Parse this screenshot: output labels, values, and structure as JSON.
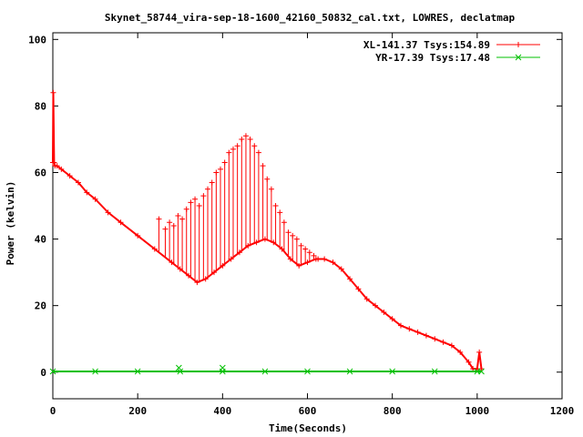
{
  "chart_data": {
    "type": "line",
    "title": "Skynet_58744_vira-sep-18-1600_42160_50832_cal.txt, LOWRES, declatmap",
    "xlabel": "Time(Seconds)",
    "ylabel": "Power (kelvin)",
    "xlim": [
      0,
      1200
    ],
    "ylim": [
      -8,
      102
    ],
    "xticks": [
      0,
      200,
      400,
      600,
      800,
      1000,
      1200
    ],
    "yticks": [
      0,
      20,
      40,
      60,
      80,
      100
    ],
    "legend_position": "top-right",
    "series": [
      {
        "name": "XL-141.37 Tsys:154.89",
        "color": "#ff0000",
        "marker": "plus",
        "x": [
          0,
          1,
          3,
          5,
          10,
          20,
          40,
          60,
          80,
          100,
          130,
          160,
          200,
          240,
          280,
          300,
          320,
          340,
          360,
          380,
          400,
          420,
          440,
          460,
          480,
          500,
          520,
          540,
          560,
          580,
          600,
          620,
          640,
          660,
          680,
          700,
          720,
          740,
          760,
          780,
          800,
          820,
          840,
          860,
          880,
          900,
          920,
          940,
          960,
          980,
          990,
          1000,
          1005,
          1010
        ],
        "y": [
          63,
          84,
          63,
          62,
          62,
          61,
          59,
          57,
          54,
          52,
          48,
          45,
          41,
          37,
          33,
          31,
          29,
          27,
          28,
          30,
          32,
          34,
          36,
          38,
          39,
          40,
          39,
          37,
          34,
          32,
          33,
          34,
          34,
          33,
          31,
          28,
          25,
          22,
          20,
          18,
          16,
          14,
          13,
          12,
          11,
          10,
          9,
          8,
          6,
          3,
          1,
          1,
          6,
          1
        ]
      },
      {
        "name": "YR-17.39 Tsys:17.48",
        "color": "#00c000",
        "marker": "cross",
        "x": [
          0,
          100,
          200,
          300,
          400,
          500,
          600,
          700,
          800,
          900,
          1000,
          1010
        ],
        "y": [
          0.2,
          0.2,
          0.2,
          0.2,
          0.2,
          0.2,
          0.2,
          0.2,
          0.2,
          0.2,
          0.2,
          0.2
        ]
      }
    ],
    "annotations": [
      {
        "series": 0,
        "label": "spikes",
        "x": [
          250,
          265,
          275,
          285,
          295,
          305,
          315,
          325,
          335,
          345,
          355,
          365,
          375,
          385,
          395,
          405,
          415,
          425,
          435,
          445,
          455,
          465,
          475,
          485,
          495,
          505,
          515,
          525,
          535,
          545,
          555,
          565,
          575,
          585,
          595,
          605,
          615,
          625
        ],
        "y": [
          46,
          43,
          45,
          44,
          47,
          46,
          49,
          51,
          52,
          50,
          53,
          55,
          57,
          60,
          61,
          63,
          66,
          67,
          68,
          70,
          71,
          70,
          68,
          66,
          62,
          58,
          55,
          50,
          48,
          45,
          42,
          41,
          40,
          38,
          37,
          36,
          35,
          34
        ]
      },
      {
        "series": 1,
        "label": "outliers",
        "x": [
          297,
          400
        ],
        "y": [
          1.3,
          1.3
        ]
      }
    ]
  }
}
